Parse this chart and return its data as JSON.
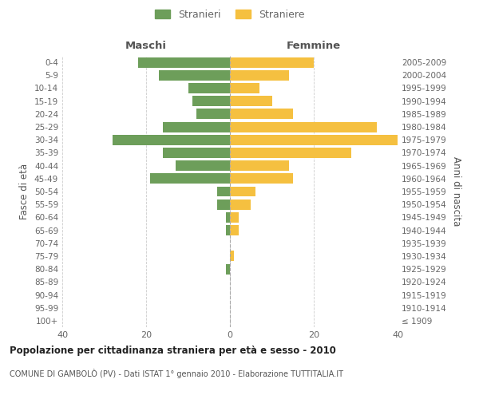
{
  "age_groups": [
    "100+",
    "95-99",
    "90-94",
    "85-89",
    "80-84",
    "75-79",
    "70-74",
    "65-69",
    "60-64",
    "55-59",
    "50-54",
    "45-49",
    "40-44",
    "35-39",
    "30-34",
    "25-29",
    "20-24",
    "15-19",
    "10-14",
    "5-9",
    "0-4"
  ],
  "birth_years": [
    "≤ 1909",
    "1910-1914",
    "1915-1919",
    "1920-1924",
    "1925-1929",
    "1930-1934",
    "1935-1939",
    "1940-1944",
    "1945-1949",
    "1950-1954",
    "1955-1959",
    "1960-1964",
    "1965-1969",
    "1970-1974",
    "1975-1979",
    "1980-1984",
    "1985-1989",
    "1990-1994",
    "1995-1999",
    "2000-2004",
    "2005-2009"
  ],
  "males": [
    0,
    0,
    0,
    0,
    1,
    0,
    0,
    1,
    1,
    3,
    3,
    19,
    13,
    16,
    28,
    16,
    8,
    9,
    10,
    17,
    22
  ],
  "females": [
    0,
    0,
    0,
    0,
    0,
    1,
    0,
    2,
    2,
    5,
    6,
    15,
    14,
    29,
    40,
    35,
    15,
    10,
    7,
    14,
    20
  ],
  "male_color": "#6d9e5a",
  "female_color": "#f5c040",
  "bar_height": 0.8,
  "xlim": [
    -40,
    40
  ],
  "xlabel_left": "Maschi",
  "xlabel_right": "Femmine",
  "ylabel_left": "Fasce di età",
  "ylabel_right": "Anni di nascita",
  "title": "Popolazione per cittadinanza straniera per età e sesso - 2010",
  "subtitle": "COMUNE DI GAMBOLÒ (PV) - Dati ISTAT 1° gennaio 2010 - Elaborazione TUTTITALIA.IT",
  "legend_stranieri": "Stranieri",
  "legend_straniere": "Straniere",
  "background_color": "#ffffff",
  "grid_color": "#cccccc",
  "center_line_color": "#aaaaaa",
  "label_color": "#666666",
  "title_color": "#222222",
  "subtitle_color": "#555555",
  "header_color": "#555555"
}
